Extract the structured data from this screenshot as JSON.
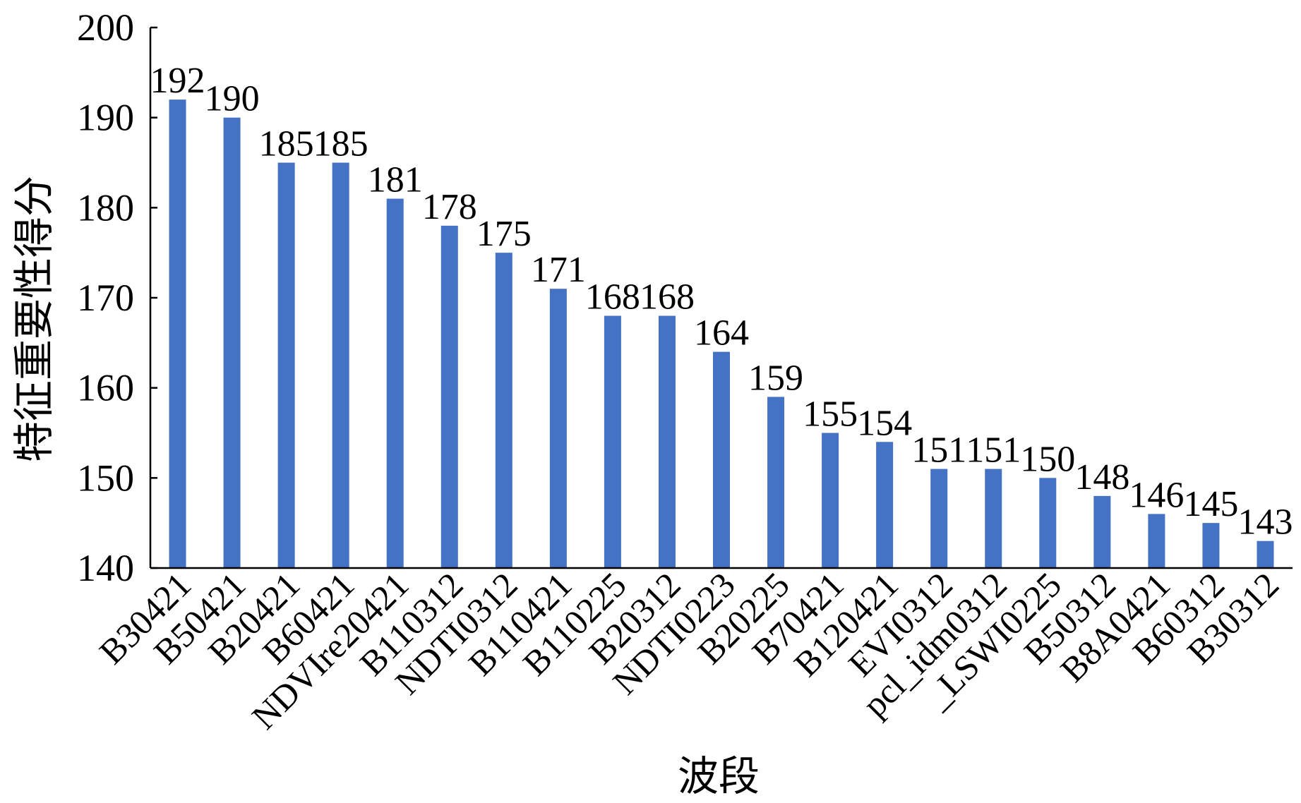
{
  "chart_data": {
    "type": "bar",
    "categories": [
      "B30421",
      "B50421",
      "B20421",
      "B60421",
      "NDVIre20421",
      "B110312",
      "NDTI0312",
      "B110421",
      "B110225",
      "B20312",
      "NDTI0223",
      "B20225",
      "B70421",
      "B120421",
      "EVI0312",
      "pcl_idm0312",
      "_LSWI0225",
      "B50312",
      "B8A0421",
      "B60312",
      "B30312"
    ],
    "values": [
      192,
      190,
      185,
      185,
      181,
      178,
      175,
      171,
      168,
      168,
      164,
      159,
      155,
      154,
      151,
      151,
      150,
      148,
      146,
      145,
      143
    ],
    "data_labels": [
      "192",
      "190",
      "185",
      "185",
      "181",
      "178",
      "175",
      "171",
      "168",
      "168",
      "164",
      "159",
      "155",
      "154",
      "151",
      "151",
      "150",
      "148",
      "146",
      "145",
      "143"
    ],
    "xlabel": "波段",
    "ylabel": "特征重要性得分",
    "ylim": [
      140,
      200
    ],
    "yticks": [
      140,
      150,
      160,
      170,
      180,
      190,
      200
    ],
    "ytick_labels": [
      "140",
      "150",
      "160",
      "170",
      "180",
      "190",
      "200"
    ],
    "grid": false,
    "legend": "none",
    "bar_color": "#4472C4",
    "axis_color": "#000000"
  }
}
